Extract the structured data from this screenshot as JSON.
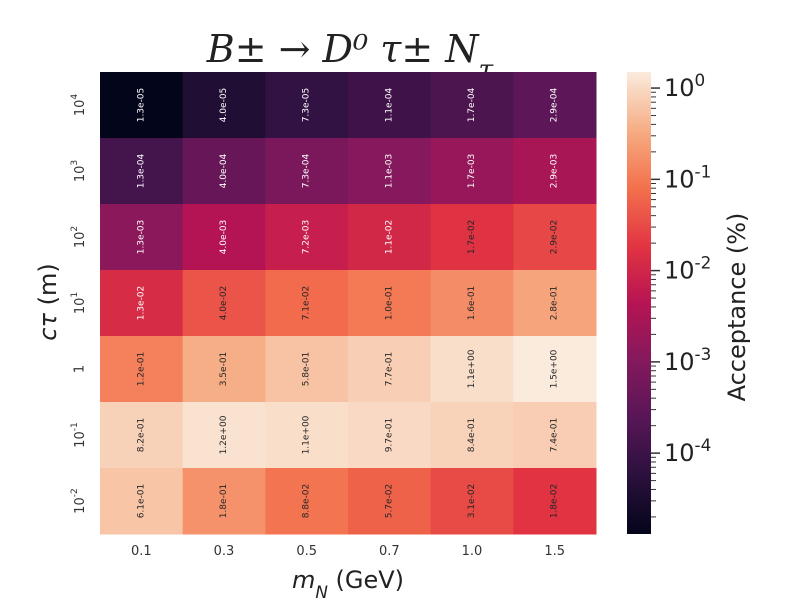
{
  "chart_data": {
    "type": "heatmap",
    "title": "B± → D⁰ τ± N_τ",
    "xlabel": "m_N (GeV)",
    "ylabel": "cτ (m)",
    "colorbar_label": "Acceptance (%)",
    "colormap": "rocket",
    "color_scale": "log",
    "color_range": [
      1.3e-05,
      1.5
    ],
    "x_categories": [
      "0.1",
      "0.3",
      "0.5",
      "0.7",
      "1.0",
      "1.5"
    ],
    "y_categories_top_to_bottom": [
      "10^4",
      "10^3",
      "10^2",
      "10^1",
      "1",
      "10^-1",
      "10^-2"
    ],
    "cell_labels": [
      [
        "1.3e-05",
        "4.0e-05",
        "7.3e-05",
        "1.1e-04",
        "1.7e-04",
        "2.9e-04"
      ],
      [
        "1.3e-04",
        "4.0e-04",
        "7.3e-04",
        "1.1e-03",
        "1.7e-03",
        "2.9e-03"
      ],
      [
        "1.3e-03",
        "4.0e-03",
        "7.2e-03",
        "1.1e-02",
        "1.7e-02",
        "2.9e-02"
      ],
      [
        "1.3e-02",
        "4.0e-02",
        "7.1e-02",
        "1.0e-01",
        "1.6e-01",
        "2.8e-01"
      ],
      [
        "1.2e-01",
        "3.5e-01",
        "5.8e-01",
        "7.7e-01",
        "1.1e+00",
        "1.5e+00"
      ],
      [
        "8.2e-01",
        "1.2e+00",
        "1.1e+00",
        "9.7e-01",
        "8.4e-01",
        "7.4e-01"
      ],
      [
        "6.1e-01",
        "1.8e-01",
        "8.8e-02",
        "5.7e-02",
        "3.1e-02",
        "1.8e-02"
      ]
    ],
    "colorbar_ticks": [
      "10^-4",
      "10^-3",
      "10^-2",
      "10^-1",
      "10^0"
    ]
  }
}
